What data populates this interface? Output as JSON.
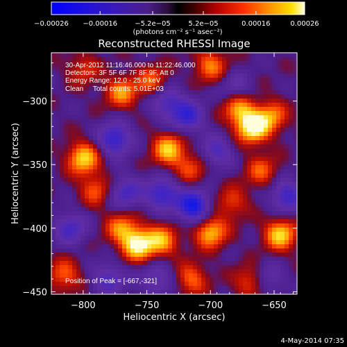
{
  "chart_data": {
    "type": "heatmap",
    "title": "Reconstructed RHESSI Image",
    "xlabel": "Heliocentric X (arcsec)",
    "ylabel": "Heliocentric Y (arcsec)",
    "xlim": [
      -825,
      -632
    ],
    "ylim": [
      -452,
      -262
    ],
    "x_ticks": [
      -800,
      -750,
      -700,
      -650
    ],
    "x_tick_labels": [
      "−800",
      "−750",
      "−700",
      "−650"
    ],
    "y_ticks": [
      -300,
      -350,
      -400,
      -450
    ],
    "y_tick_labels": [
      "−300",
      "−350",
      "−400",
      "−450"
    ],
    "colorbar": {
      "range": [
        -0.00026,
        0.00026
      ],
      "ticks": [
        -0.00026,
        -0.00016,
        -5.2e-05,
        5.2e-05,
        0.00016,
        0.00026
      ],
      "tick_labels": [
        "−0.00026",
        "−0.00016",
        "−5.2e−05",
        "5.2e−05",
        "0.00016",
        "0.00026"
      ],
      "unit_label": "(photons cm⁻² s⁻¹ asec⁻²)"
    },
    "annotations": [
      "30-Apr-2012 11:16:46.000 to 11:22:46.000",
      "Detectors: 3F 5F 6F 7F 8F 9F, Att 0",
      "Energy Range: 12.0 - 25.0 keV",
      "Clean     Total counts: 5.01E+03"
    ],
    "peak_label": "Position of Peak = [-667,-321]",
    "peak": [
      -667,
      -321
    ],
    "blobs": [
      {
        "x": -667,
        "y": -321,
        "v": 1.0
      },
      {
        "x": -678,
        "y": -306,
        "v": 0.7
      },
      {
        "x": -652,
        "y": -312,
        "v": 0.6
      },
      {
        "x": -770,
        "y": -293,
        "v": 0.65
      },
      {
        "x": -745,
        "y": -285,
        "v": 0.55
      },
      {
        "x": -800,
        "y": -345,
        "v": 0.85
      },
      {
        "x": -790,
        "y": -370,
        "v": 0.5
      },
      {
        "x": -757,
        "y": -413,
        "v": 0.95
      },
      {
        "x": -770,
        "y": -400,
        "v": 0.6
      },
      {
        "x": -738,
        "y": -410,
        "v": 0.7
      },
      {
        "x": -733,
        "y": -338,
        "v": 0.8
      },
      {
        "x": -715,
        "y": -353,
        "v": 0.45
      },
      {
        "x": -700,
        "y": -403,
        "v": 0.8
      },
      {
        "x": -683,
        "y": -380,
        "v": 0.45
      },
      {
        "x": -645,
        "y": -405,
        "v": 0.85
      },
      {
        "x": -660,
        "y": -355,
        "v": 0.5
      },
      {
        "x": -815,
        "y": -437,
        "v": 0.55
      },
      {
        "x": -715,
        "y": -440,
        "v": 0.55
      },
      {
        "x": -668,
        "y": -442,
        "v": 0.55
      },
      {
        "x": -700,
        "y": -272,
        "v": 0.6
      },
      {
        "x": -800,
        "y": -275,
        "v": 0.4
      },
      {
        "x": -735,
        "y": -300,
        "v": -0.6
      },
      {
        "x": -775,
        "y": -330,
        "v": -0.8
      },
      {
        "x": -718,
        "y": -312,
        "v": -0.7
      },
      {
        "x": -695,
        "y": -340,
        "v": -0.55
      },
      {
        "x": -713,
        "y": -383,
        "v": -1.0
      },
      {
        "x": -738,
        "y": -373,
        "v": -0.75
      },
      {
        "x": -767,
        "y": -372,
        "v": -0.6
      },
      {
        "x": -780,
        "y": -440,
        "v": -0.55
      },
      {
        "x": -640,
        "y": -375,
        "v": -0.7
      },
      {
        "x": -655,
        "y": -440,
        "v": -0.45
      },
      {
        "x": -810,
        "y": -400,
        "v": -0.6
      },
      {
        "x": -742,
        "y": -440,
        "v": -0.5
      },
      {
        "x": -680,
        "y": -290,
        "v": -0.4
      }
    ]
  },
  "footer": {
    "date_label": "4-May-2014 07:35"
  }
}
